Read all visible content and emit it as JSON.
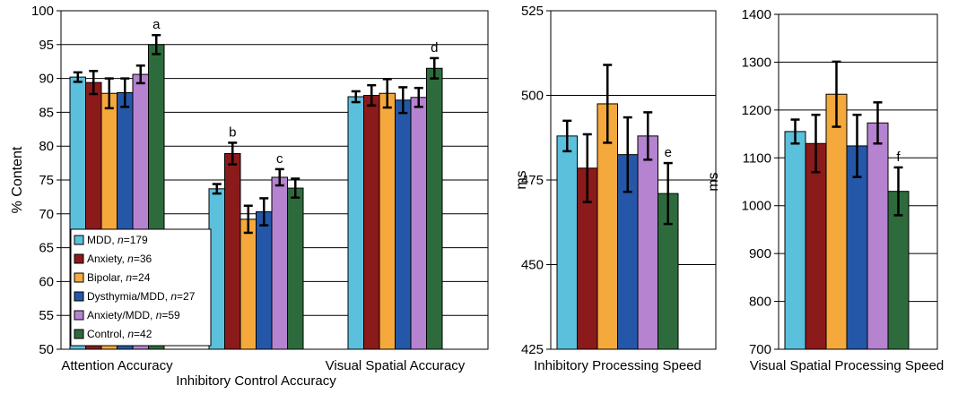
{
  "legend": [
    {
      "name": "MDD",
      "n": "179",
      "color": "#5bc0dc"
    },
    {
      "name": "Anxiety",
      "n": "36",
      "color": "#8b1a1a"
    },
    {
      "name": "Bipolar",
      "n": "24",
      "color": "#f5a93c"
    },
    {
      "name": "Dysthymia/MDD",
      "n": "27",
      "color": "#2457a8"
    },
    {
      "name": "Anxiety/MDD",
      "n": "59",
      "color": "#b583cf"
    },
    {
      "name": "Control",
      "n": "42",
      "color": "#2e6b3c"
    }
  ],
  "chart_data": [
    {
      "type": "bar",
      "ylabel": "% Content",
      "ylim": [
        50,
        100
      ],
      "yticks": [
        "50",
        "55",
        "60",
        "65",
        "70",
        "75",
        "80",
        "85",
        "90",
        "95",
        "100"
      ],
      "grid": true,
      "categories": [
        "Attention Accuracy",
        "Inhibitory Control Accuracy",
        "Visual Spatial Accuracy"
      ],
      "series": [
        {
          "name": "MDD",
          "values": [
            90.2,
            73.7,
            87.3
          ],
          "errors": [
            0.7,
            0.7,
            0.8
          ]
        },
        {
          "name": "Anxiety",
          "values": [
            89.4,
            78.9,
            87.5
          ],
          "errors": [
            1.7,
            1.6,
            1.5
          ]
        },
        {
          "name": "Bipolar",
          "values": [
            87.8,
            69.2,
            87.8
          ],
          "errors": [
            2.2,
            2.0,
            2.1
          ]
        },
        {
          "name": "Dysthymia/MDD",
          "values": [
            87.9,
            70.3,
            86.8
          ],
          "errors": [
            2.1,
            2.0,
            1.9
          ]
        },
        {
          "name": "Anxiety/MDD",
          "values": [
            90.6,
            75.4,
            87.2
          ],
          "errors": [
            1.3,
            1.2,
            1.4
          ]
        },
        {
          "name": "Control",
          "values": [
            95.0,
            73.8,
            91.5
          ],
          "errors": [
            1.4,
            1.4,
            1.5
          ]
        }
      ],
      "annotations": [
        {
          "text": "a",
          "category": 0,
          "series": 5
        },
        {
          "text": "b",
          "category": 1,
          "series": 1
        },
        {
          "text": "c",
          "category": 1,
          "series": 4
        },
        {
          "text": "d",
          "category": 2,
          "series": 5
        }
      ]
    },
    {
      "type": "bar",
      "ylabel": "ms",
      "ylim": [
        425,
        525
      ],
      "yticks": [
        "425",
        "450",
        "475",
        "500",
        "525"
      ],
      "grid": true,
      "categories": [
        "Inhibitory Processing Speed"
      ],
      "series": [
        {
          "name": "MDD",
          "values": [
            488
          ],
          "errors": [
            4.5
          ]
        },
        {
          "name": "Anxiety",
          "values": [
            478.5
          ],
          "errors": [
            10
          ]
        },
        {
          "name": "Bipolar",
          "values": [
            497.5
          ],
          "errors": [
            11.5
          ]
        },
        {
          "name": "Dysthymia/MDD",
          "values": [
            482.5
          ],
          "errors": [
            11
          ]
        },
        {
          "name": "Anxiety/MDD",
          "values": [
            488
          ],
          "errors": [
            7
          ]
        },
        {
          "name": "Control",
          "values": [
            471
          ],
          "errors": [
            9
          ]
        }
      ],
      "annotations": [
        {
          "text": "e",
          "category": 0,
          "series": 5
        }
      ]
    },
    {
      "type": "bar",
      "ylabel": "ms",
      "ylim": [
        700,
        1400
      ],
      "yticks": [
        "700",
        "800",
        "900",
        "1000",
        "1100",
        "1200",
        "1300",
        "1400"
      ],
      "grid": true,
      "categories": [
        "Visual Spatial Processing Speed"
      ],
      "series": [
        {
          "name": "MDD",
          "values": [
            1155
          ],
          "errors": [
            25
          ]
        },
        {
          "name": "Anxiety",
          "values": [
            1130
          ],
          "errors": [
            60
          ]
        },
        {
          "name": "Bipolar",
          "values": [
            1233
          ],
          "errors": [
            68
          ]
        },
        {
          "name": "Dysthymia/MDD",
          "values": [
            1125
          ],
          "errors": [
            65
          ]
        },
        {
          "name": "Anxiety/MDD",
          "values": [
            1173
          ],
          "errors": [
            43
          ]
        },
        {
          "name": "Control",
          "values": [
            1030
          ],
          "errors": [
            50
          ]
        }
      ],
      "annotations": [
        {
          "text": "f",
          "category": 0,
          "series": 5
        }
      ]
    }
  ]
}
